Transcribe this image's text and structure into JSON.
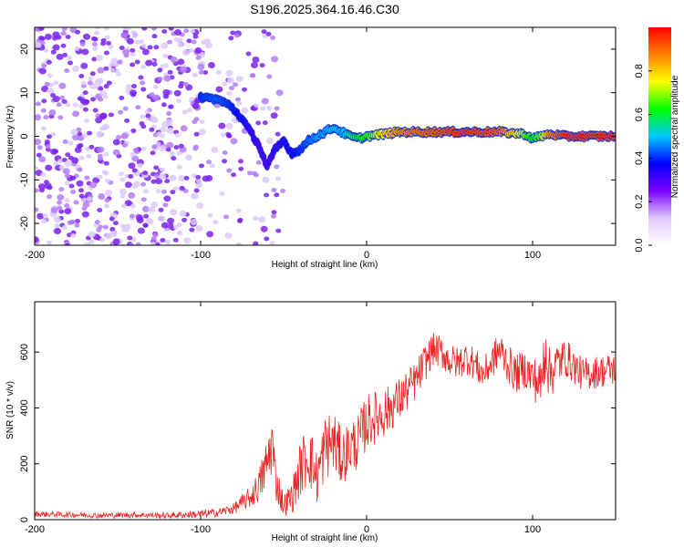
{
  "title": "S196.2025.364.16.46.C30",
  "chart_data": [
    {
      "type": "heatmap",
      "title": "",
      "xlabel": "Height of straight line (km)",
      "ylabel": "Frequency (Hz)",
      "xlim": [
        -200,
        150
      ],
      "ylim": [
        -25,
        25
      ],
      "xticks": [
        -200,
        -100,
        0,
        100
      ],
      "xtick_labels": [
        "-200",
        "-100",
        "0",
        "100"
      ],
      "yticks": [
        -20,
        -10,
        0,
        10,
        20
      ],
      "ytick_labels": [
        "-20",
        "-10",
        "0",
        "10",
        "20"
      ],
      "colorbar": {
        "label": "Normalized spectral amplitude",
        "range": [
          0,
          1
        ],
        "ticks": [
          0.0,
          0.2,
          0.4,
          0.6,
          0.8
        ],
        "tick_labels": [
          "0.0",
          "0.2",
          "0.4",
          "0.6",
          "0.8"
        ],
        "colors": [
          "#ffffff",
          "#e0c8ff",
          "#7a00ff",
          "#0000ff",
          "#00c8ff",
          "#00ff00",
          "#ffff00",
          "#ff8000",
          "#ff0000"
        ]
      },
      "ridge": {
        "name": "Dominant frequency track",
        "x": [
          -100,
          -90,
          -82,
          -75,
          -70,
          -65,
          -60,
          -55,
          -50,
          -45,
          -40,
          -35,
          -30,
          -25,
          -20,
          -15,
          -10,
          -5,
          0,
          10,
          20,
          40,
          60,
          80,
          95,
          100,
          105,
          110,
          120,
          150
        ],
        "y": [
          9,
          8.5,
          7,
          4,
          1,
          -2,
          -7,
          -3,
          -1,
          -4,
          -3,
          -1,
          0,
          1,
          2,
          1,
          0,
          -0.5,
          0,
          0.5,
          1,
          1,
          1,
          1,
          0.5,
          -0.5,
          0,
          0.5,
          0,
          0
        ],
        "amplitude": [
          0.25,
          0.3,
          0.25,
          0.2,
          0.15,
          0.12,
          0.12,
          0.15,
          0.18,
          0.2,
          0.25,
          0.3,
          0.35,
          0.35,
          0.4,
          0.35,
          0.45,
          0.5,
          0.55,
          0.7,
          0.8,
          0.85,
          0.9,
          0.85,
          0.6,
          0.5,
          0.6,
          0.8,
          0.9,
          0.9
        ]
      },
      "noise_region": {
        "x_range": [
          -200,
          -80
        ],
        "y_range": [
          -25,
          25
        ],
        "amplitude_range": [
          0.0,
          0.15
        ]
      }
    },
    {
      "type": "line",
      "title": "",
      "xlabel": "Height of straight line (km)",
      "ylabel": "SNR (10 * v/v)",
      "xlim": [
        -200,
        150
      ],
      "ylim": [
        0,
        780
      ],
      "xticks": [
        -200,
        -100,
        0,
        100
      ],
      "xtick_labels": [
        "-200",
        "-100",
        "0",
        "100"
      ],
      "yticks": [
        0,
        200,
        400,
        600
      ],
      "ytick_labels": [
        "0",
        "200",
        "400",
        "600"
      ],
      "series": [
        {
          "name": "SNR",
          "color": "#ee2222",
          "x": [
            -200,
            -180,
            -160,
            -140,
            -120,
            -100,
            -90,
            -80,
            -75,
            -70,
            -65,
            -60,
            -57,
            -55,
            -50,
            -45,
            -40,
            -35,
            -30,
            -25,
            -20,
            -15,
            -10,
            -5,
            0,
            10,
            20,
            30,
            35,
            40,
            45,
            50,
            55,
            60,
            65,
            70,
            75,
            80,
            85,
            90,
            95,
            100,
            105,
            108,
            110,
            115,
            120,
            130,
            140,
            150
          ],
          "y": [
            20,
            18,
            15,
            17,
            15,
            20,
            25,
            40,
            60,
            80,
            120,
            200,
            280,
            150,
            50,
            80,
            180,
            240,
            150,
            260,
            280,
            220,
            260,
            280,
            350,
            380,
            430,
            500,
            560,
            610,
            600,
            570,
            560,
            580,
            560,
            520,
            560,
            610,
            560,
            520,
            540,
            510,
            480,
            640,
            520,
            560,
            580,
            520,
            530,
            540
          ],
          "noise_amplitude": [
            10,
            10,
            10,
            10,
            10,
            15,
            15,
            20,
            30,
            40,
            60,
            100,
            120,
            80,
            40,
            60,
            100,
            120,
            100,
            120,
            120,
            100,
            100,
            100,
            100,
            90,
            80,
            70,
            70,
            60,
            60,
            60,
            60,
            60,
            60,
            60,
            60,
            70,
            70,
            70,
            70,
            80,
            90,
            140,
            100,
            80,
            70,
            60,
            60,
            60
          ]
        }
      ]
    }
  ]
}
